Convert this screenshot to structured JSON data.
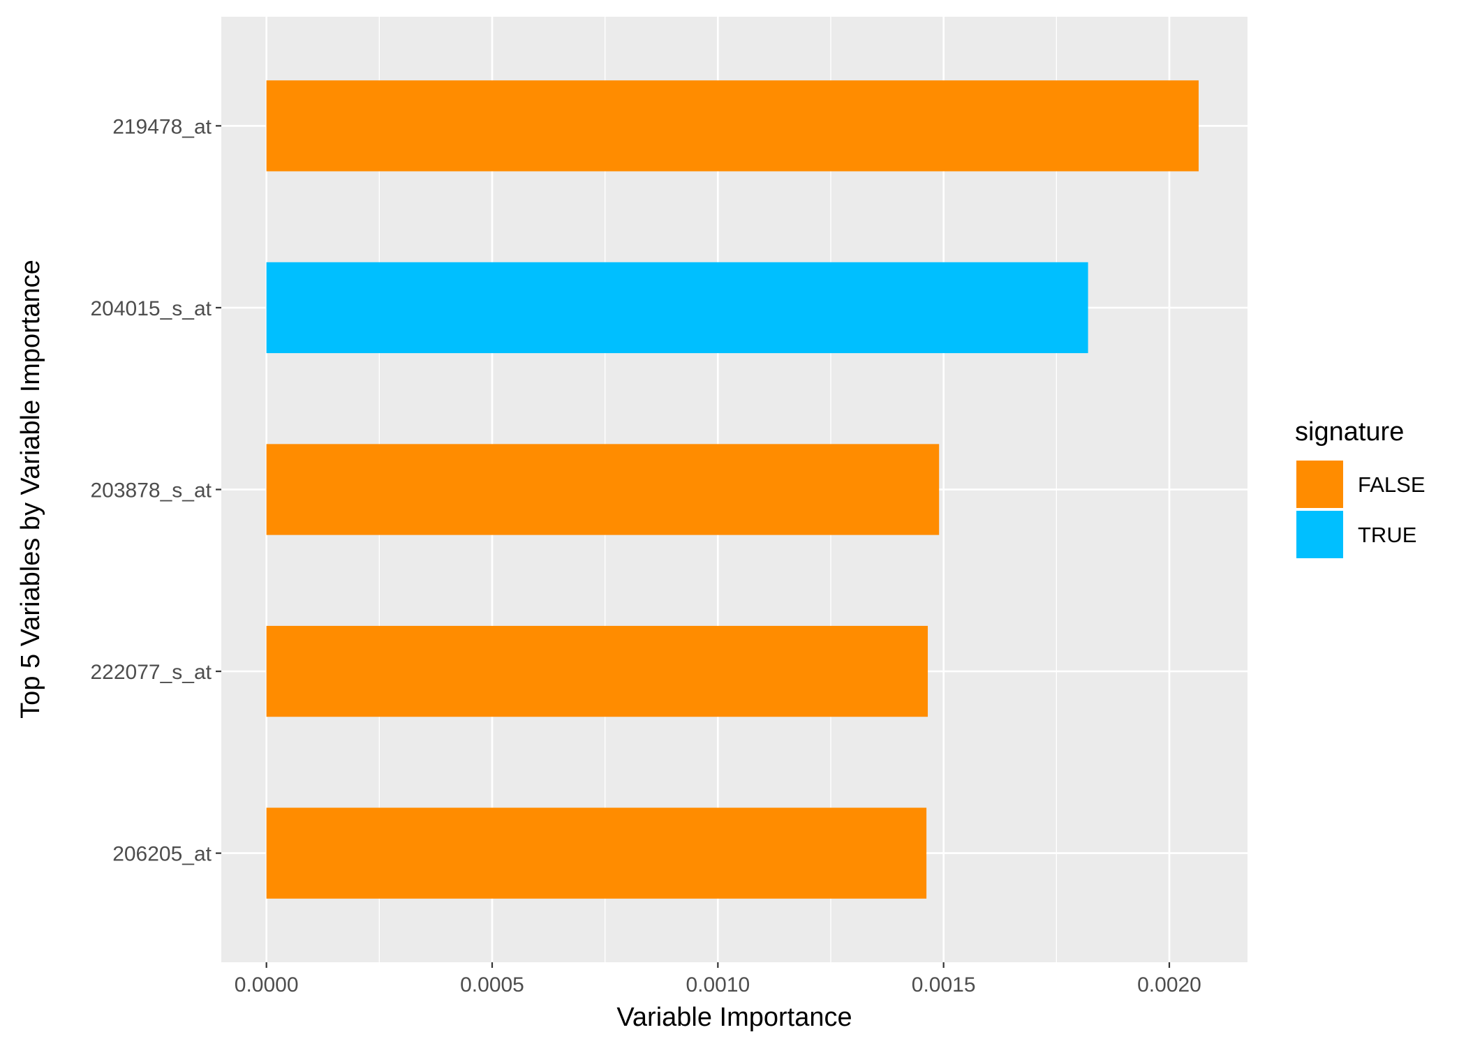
{
  "chart_data": {
    "type": "bar",
    "orientation": "horizontal",
    "categories": [
      "219478_at",
      "204015_s_at",
      "203878_s_at",
      "222077_s_at",
      "206205_at"
    ],
    "values": [
      0.002065,
      0.00182,
      0.00149,
      0.001465,
      0.001462
    ],
    "signature": [
      "FALSE",
      "TRUE",
      "FALSE",
      "FALSE",
      "FALSE"
    ],
    "xlabel": "Variable Importance",
    "ylabel": "Top 5 Variables by Variable Importance",
    "xlim": [
      -0.0001,
      0.0021732
    ],
    "x_ticks": [
      0,
      0.0005,
      0.001,
      0.0015,
      0.002
    ],
    "x_tick_labels": [
      "0.0000",
      "0.0005",
      "0.0010",
      "0.0015",
      "0.0020"
    ],
    "grid": true,
    "legend": {
      "title": "signature",
      "position": "right",
      "entries": [
        {
          "label": "FALSE",
          "color": "#FF8C00"
        },
        {
          "label": "TRUE",
          "color": "#00BFFF"
        }
      ]
    },
    "colors": {
      "FALSE": "#FF8C00",
      "TRUE": "#00BFFF",
      "panel": "#EBEBEB",
      "grid": "#FFFFFF"
    }
  }
}
